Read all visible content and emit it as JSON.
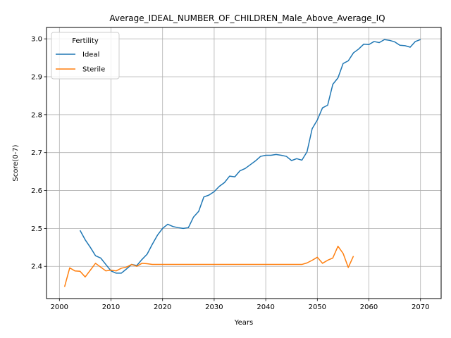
{
  "chart_data": {
    "type": "line",
    "title": "Average_IDEAL_NUMBER_OF_CHILDREN_Male_Above_Average_IQ",
    "xlabel": "Years",
    "ylabel": "Score(0-7)",
    "xlim": [
      1997.5,
      2074.0
    ],
    "ylim": [
      2.315,
      3.03
    ],
    "x_ticks": [
      2000,
      2010,
      2020,
      2030,
      2040,
      2050,
      2060,
      2070
    ],
    "y_ticks": [
      2.4,
      2.5,
      2.6,
      2.7,
      2.8,
      2.9,
      3.0
    ],
    "x_tick_labels": [
      "2000",
      "2010",
      "2020",
      "2030",
      "2040",
      "2050",
      "2060",
      "2070"
    ],
    "y_tick_labels": [
      "2.4",
      "2.5",
      "2.6",
      "2.7",
      "2.8",
      "2.9",
      "3.0"
    ],
    "grid": true,
    "legend": {
      "title": "Fertility",
      "placement": "top-left"
    },
    "series": [
      {
        "name": "Ideal",
        "color": "#1f77b4",
        "x": [
          2004,
          2005,
          2006,
          2007,
          2008,
          2009,
          2010,
          2011,
          2012,
          2013,
          2014,
          2015,
          2016,
          2017,
          2018,
          2019,
          2020,
          2021,
          2022,
          2023,
          2024,
          2025,
          2026,
          2027,
          2028,
          2029,
          2030,
          2031,
          2032,
          2033,
          2034,
          2035,
          2036,
          2037,
          2038,
          2039,
          2040,
          2041,
          2042,
          2043,
          2044,
          2045,
          2046,
          2047,
          2048,
          2049,
          2050,
          2051,
          2052,
          2053,
          2054,
          2055,
          2056,
          2057,
          2058,
          2059,
          2060,
          2061,
          2062,
          2063,
          2064,
          2065,
          2066,
          2067,
          2068,
          2069,
          2070
        ],
        "y": [
          2.495,
          2.47,
          2.45,
          2.428,
          2.422,
          2.405,
          2.388,
          2.382,
          2.382,
          2.393,
          2.405,
          2.402,
          2.418,
          2.432,
          2.458,
          2.482,
          2.5,
          2.511,
          2.505,
          2.502,
          2.5,
          2.502,
          2.53,
          2.545,
          2.583,
          2.588,
          2.597,
          2.611,
          2.621,
          2.638,
          2.636,
          2.652,
          2.658,
          2.668,
          2.678,
          2.69,
          2.693,
          2.693,
          2.695,
          2.693,
          2.69,
          2.679,
          2.684,
          2.68,
          2.702,
          2.763,
          2.786,
          2.818,
          2.825,
          2.88,
          2.897,
          2.935,
          2.942,
          2.963,
          2.973,
          2.986,
          2.985,
          2.993,
          2.99,
          2.998,
          2.996,
          2.992,
          2.983,
          2.982,
          2.978,
          2.993,
          2.998
        ]
      },
      {
        "name": "Sterile",
        "color": "#ff7f0e",
        "x": [
          2001,
          2002,
          2003,
          2004,
          2005,
          2006,
          2007,
          2008,
          2009,
          2010,
          2011,
          2012,
          2013,
          2014,
          2015,
          2016,
          2017,
          2018,
          2019,
          2020,
          2021,
          2022,
          2023,
          2024,
          2025,
          2026,
          2027,
          2028,
          2029,
          2030,
          2031,
          2032,
          2033,
          2034,
          2035,
          2036,
          2037,
          2038,
          2039,
          2040,
          2041,
          2042,
          2043,
          2044,
          2045,
          2046,
          2047,
          2048,
          2049,
          2050,
          2051,
          2052,
          2053,
          2054,
          2055,
          2056,
          2057
        ],
        "y": [
          2.346,
          2.396,
          2.388,
          2.387,
          2.372,
          2.39,
          2.408,
          2.398,
          2.388,
          2.39,
          2.388,
          2.395,
          2.398,
          2.405,
          2.4,
          2.408,
          2.407,
          2.405,
          2.405,
          2.405,
          2.405,
          2.405,
          2.405,
          2.405,
          2.405,
          2.405,
          2.405,
          2.405,
          2.405,
          2.405,
          2.405,
          2.405,
          2.405,
          2.405,
          2.405,
          2.405,
          2.405,
          2.405,
          2.405,
          2.405,
          2.405,
          2.405,
          2.405,
          2.405,
          2.405,
          2.405,
          2.405,
          2.409,
          2.416,
          2.424,
          2.408,
          2.416,
          2.422,
          2.453,
          2.434,
          2.397,
          2.427
        ]
      }
    ]
  }
}
